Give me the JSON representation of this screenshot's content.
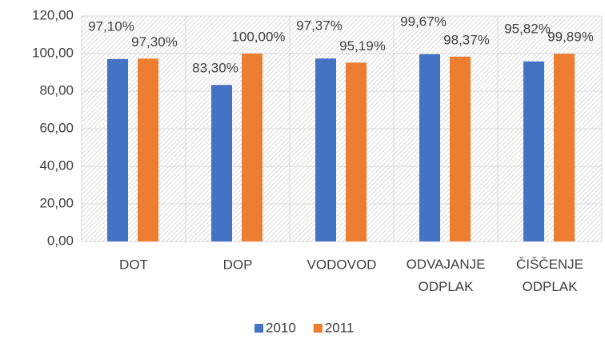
{
  "chart_data": {
    "type": "bar",
    "categories": [
      "DOT",
      "DOP",
      "VODOVOD",
      "ODVAJANJE ODPLAK",
      "ČIŠČENJE ODPLAK"
    ],
    "series": [
      {
        "name": "2010",
        "color": "#4472c4",
        "values": [
          97.1,
          83.3,
          97.37,
          99.67,
          95.82
        ],
        "value_labels": [
          "97,10%",
          "83,30%",
          "97,37%",
          "99,67%",
          "95,82%"
        ]
      },
      {
        "name": "2011",
        "color": "#ed7d31",
        "values": [
          97.3,
          100.0,
          95.19,
          98.37,
          99.89
        ],
        "value_labels": [
          "97,30%",
          "100,00%",
          "95,19%",
          "98,37%",
          "99,89%"
        ]
      }
    ],
    "ylim": [
      0,
      120
    ],
    "yticks": [
      {
        "value": 0,
        "label": "0,00"
      },
      {
        "value": 20,
        "label": "20,00"
      },
      {
        "value": 40,
        "label": "40,00"
      },
      {
        "value": 60,
        "label": "60,00"
      },
      {
        "value": 80,
        "label": "80,00"
      },
      {
        "value": 100,
        "label": "100,00"
      },
      {
        "value": 120,
        "label": "120,00"
      }
    ],
    "grid": true,
    "legend": "bottom"
  }
}
